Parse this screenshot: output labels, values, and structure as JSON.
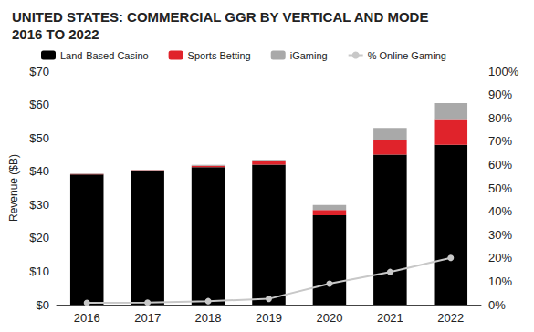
{
  "chart_data": {
    "type": "bar",
    "title": "UNITED STATES: COMMERCIAL GGR BY VERTICAL AND MODE\n2016 TO 2022",
    "y_label": "Revenue ($B)",
    "categories": [
      "2016",
      "2017",
      "2018",
      "2019",
      "2020",
      "2021",
      "2022"
    ],
    "stacked": true,
    "grid": false,
    "legend": "top",
    "series": [
      {
        "name": "Land-Based Casino",
        "type": "bar",
        "color": "#000000",
        "values": [
          39.0,
          40.1,
          41.2,
          42.0,
          26.8,
          45.0,
          47.9
        ]
      },
      {
        "name": "Sports Betting",
        "type": "bar",
        "color": "#e0232b",
        "values": [
          0.2,
          0.25,
          0.4,
          0.9,
          1.6,
          4.3,
          7.5
        ]
      },
      {
        "name": "iGaming",
        "type": "bar",
        "color": "#a9a9a9",
        "values": [
          0.1,
          0.15,
          0.3,
          0.5,
          1.5,
          3.7,
          5.0
        ]
      },
      {
        "name": "% Online Gaming",
        "type": "line",
        "axis": "y2",
        "color": "#c8c8c8",
        "marker": "circle",
        "values": [
          0.8,
          0.9,
          1.5,
          2.5,
          9.0,
          14.0,
          20.0
        ]
      }
    ],
    "ylim": [
      0,
      70
    ],
    "yticks": [
      {
        "value": 0,
        "label": "$0"
      },
      {
        "value": 10,
        "label": "$10"
      },
      {
        "value": 20,
        "label": "$20"
      },
      {
        "value": 30,
        "label": "$30"
      },
      {
        "value": 40,
        "label": "$40"
      },
      {
        "value": 50,
        "label": "$50"
      },
      {
        "value": 60,
        "label": "$60"
      },
      {
        "value": 70,
        "label": "$70"
      }
    ],
    "y2lim": [
      0,
      100
    ],
    "y2ticks": [
      {
        "value": 0,
        "label": "0%"
      },
      {
        "value": 10,
        "label": "10%"
      },
      {
        "value": 20,
        "label": "20%"
      },
      {
        "value": 30,
        "label": "30%"
      },
      {
        "value": 40,
        "label": "40%"
      },
      {
        "value": 50,
        "label": "50%"
      },
      {
        "value": 60,
        "label": "60%"
      },
      {
        "value": 70,
        "label": "70%"
      },
      {
        "value": 80,
        "label": "80%"
      },
      {
        "value": 90,
        "label": "90%"
      },
      {
        "value": 100,
        "label": "100%"
      }
    ]
  }
}
